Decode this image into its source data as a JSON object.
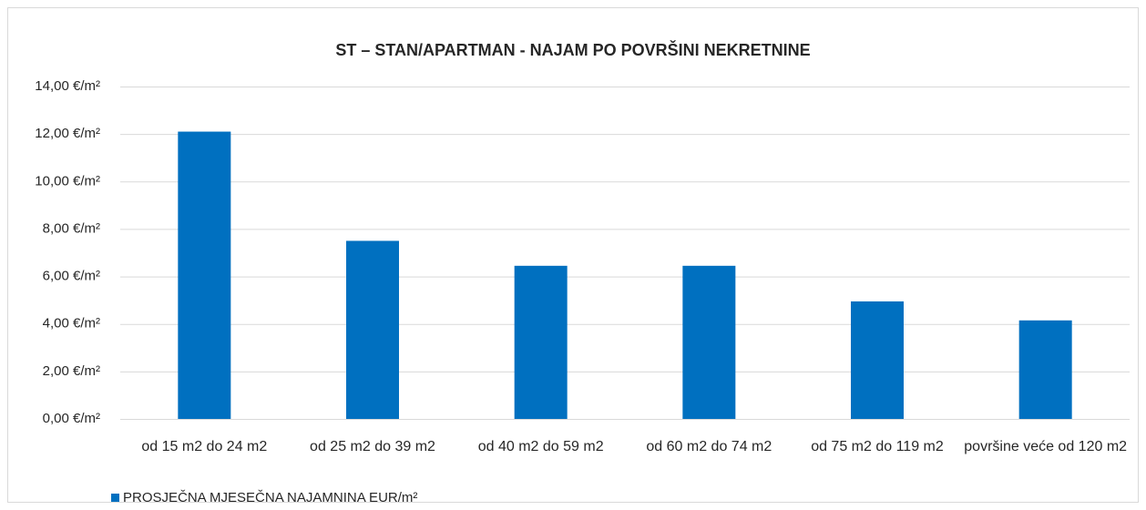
{
  "chart_data": {
    "type": "bar",
    "title": "ST – STAN/APARTMAN - NAJAM PO POVRŠINI NEKRETNINE",
    "categories": [
      "od 15 m2 do 24 m2",
      "od 25 m2 do 39 m2",
      "od 40 m2 do 59 m2",
      "od 60 m2 do 74 m2",
      "od 75 m2 do 119 m2",
      "površine veće od 120 m2"
    ],
    "series": [
      {
        "name": "PROSJEČNA MJESEČNA NAJAMNINA EUR/m²",
        "color": "#0070c0",
        "values": [
          12.1,
          7.5,
          6.45,
          6.45,
          4.95,
          4.15
        ]
      }
    ],
    "ylim": [
      0,
      14
    ],
    "yticks": [
      {
        "value": 0,
        "label": "0,00 €/m²"
      },
      {
        "value": 2,
        "label": "2,00 €/m²"
      },
      {
        "value": 4,
        "label": "4,00 €/m²"
      },
      {
        "value": 6,
        "label": "6,00 €/m²"
      },
      {
        "value": 8,
        "label": "8,00 €/m²"
      },
      {
        "value": 10,
        "label": "10,00 €/m²"
      },
      {
        "value": 12,
        "label": "12,00 €/m²"
      },
      {
        "value": 14,
        "label": "14,00 €/m²"
      }
    ],
    "grid": true
  }
}
